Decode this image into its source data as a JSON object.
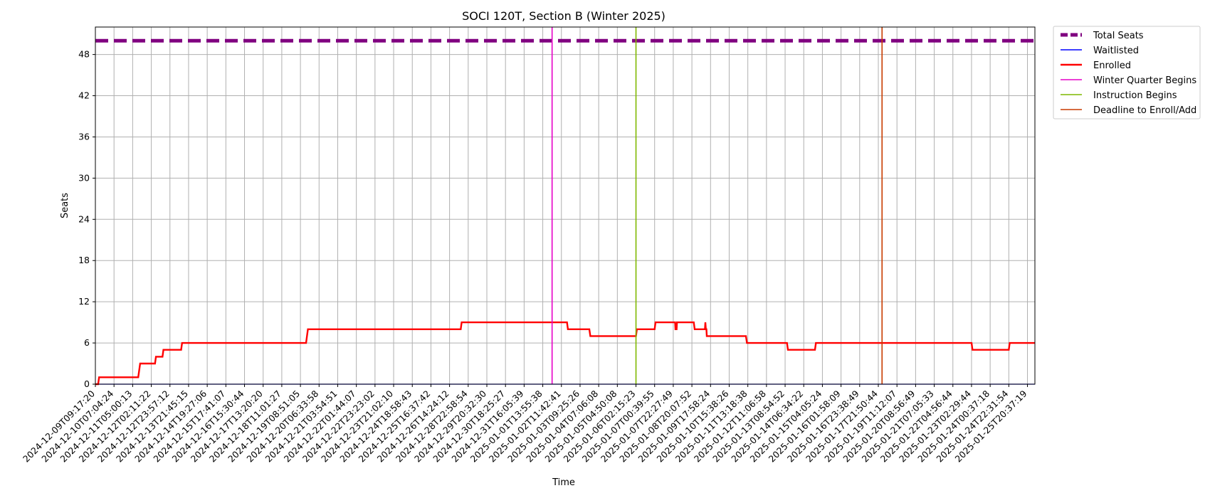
{
  "chart_data": {
    "type": "line",
    "title": "SOCI 120T, Section B (Winter 2025)",
    "xlabel": "Time",
    "ylabel": "Seats",
    "ylim": [
      0,
      52
    ],
    "yticks": [
      0,
      6,
      12,
      18,
      24,
      30,
      36,
      42,
      48
    ],
    "grid": true,
    "legend_position": "outside-top-right",
    "xticks": [
      "2024-12-09T09:17:20",
      "2024-12-10T07:04:24",
      "2024-12-11T05:00:13",
      "2024-12-12T02:11:22",
      "2024-12-12T23:57:12",
      "2024-12-13T21:45:15",
      "2024-12-14T19:27:06",
      "2024-12-15T17:41:07",
      "2024-12-16T15:30:44",
      "2024-12-17T13:20:20",
      "2024-12-18T11:01:27",
      "2024-12-19T08:51:05",
      "2024-12-20T06:33:58",
      "2024-12-21T03:54:51",
      "2024-12-22T01:44:07",
      "2024-12-22T23:23:02",
      "2024-12-23T21:02:10",
      "2024-12-24T18:58:43",
      "2024-12-25T16:37:42",
      "2024-12-26T14:24:12",
      "2024-12-28T22:58:54",
      "2024-12-29T20:32:30",
      "2024-12-30T18:25:27",
      "2024-12-31T16:05:39",
      "2025-01-01T13:55:38",
      "2025-01-02T11:42:41",
      "2025-01-03T09:25:26",
      "2025-01-04T07:06:08",
      "2025-01-05T04:50:08",
      "2025-01-06T02:15:23",
      "2025-01-07T00:39:55",
      "2025-01-07T22:27:49",
      "2025-01-08T20:07:52",
      "2025-01-09T17:58:24",
      "2025-01-10T15:38:26",
      "2025-01-11T13:18:38",
      "2025-01-12T11:06:58",
      "2025-01-13T08:54:52",
      "2025-01-14T06:34:22",
      "2025-01-15T04:05:24",
      "2025-01-16T01:58:09",
      "2025-01-16T23:38:49",
      "2025-01-17T21:50:44",
      "2025-01-19T11:12:07",
      "2025-01-20T08:56:49",
      "2025-01-21T07:05:33",
      "2025-01-22T04:56:44",
      "2025-01-23T02:29:44",
      "2025-01-24T00:37:18",
      "2025-01-24T22:31:54",
      "2025-01-25T20:37:19"
    ],
    "series": [
      {
        "name": "Total Seats",
        "color": "#800080",
        "style": "dashed",
        "points": [
          [
            0,
            50
          ],
          [
            50.4,
            50
          ]
        ]
      },
      {
        "name": "Waitlisted",
        "color": "#0000ff",
        "style": "solid",
        "points": [
          [
            0,
            0
          ],
          [
            50.4,
            0
          ]
        ]
      },
      {
        "name": "Enrolled",
        "color": "#ff0000",
        "style": "solid",
        "points": [
          [
            0,
            0
          ],
          [
            0.15,
            0
          ],
          [
            0.2,
            1
          ],
          [
            2.3,
            1
          ],
          [
            2.4,
            3
          ],
          [
            3.2,
            3
          ],
          [
            3.25,
            4
          ],
          [
            3.6,
            4
          ],
          [
            3.65,
            5
          ],
          [
            4.6,
            5
          ],
          [
            4.65,
            6
          ],
          [
            11.3,
            6
          ],
          [
            11.35,
            7
          ],
          [
            11.4,
            8
          ],
          [
            19.6,
            8
          ],
          [
            19.65,
            9
          ],
          [
            25.3,
            9
          ],
          [
            25.35,
            8
          ],
          [
            26.5,
            8
          ],
          [
            26.55,
            7
          ],
          [
            29.0,
            7
          ],
          [
            29.05,
            8
          ],
          [
            30.0,
            8
          ],
          [
            30.05,
            9
          ],
          [
            31.1,
            9
          ],
          [
            31.12,
            8
          ],
          [
            31.18,
            8
          ],
          [
            31.2,
            9
          ],
          [
            32.1,
            9
          ],
          [
            32.15,
            8
          ],
          [
            32.7,
            8
          ],
          [
            32.72,
            9
          ],
          [
            32.75,
            8
          ],
          [
            32.78,
            8
          ],
          [
            32.8,
            7
          ],
          [
            34.9,
            7
          ],
          [
            34.95,
            6
          ],
          [
            37.1,
            6
          ],
          [
            37.15,
            5
          ],
          [
            38.6,
            5
          ],
          [
            38.65,
            6
          ],
          [
            47.0,
            6
          ],
          [
            47.05,
            5
          ],
          [
            49.0,
            5
          ],
          [
            49.05,
            6
          ],
          [
            50.4,
            6
          ]
        ]
      },
      {
        "name": "Winter Quarter Begins",
        "color": "#e600c8",
        "style": "vline",
        "x": 24.5
      },
      {
        "name": "Instruction Begins",
        "color": "#7fb800",
        "style": "vline",
        "x": 29.0
      },
      {
        "name": "Deadline to Enroll/Add",
        "color": "#c83c00",
        "style": "vline",
        "x": 42.2
      }
    ]
  }
}
